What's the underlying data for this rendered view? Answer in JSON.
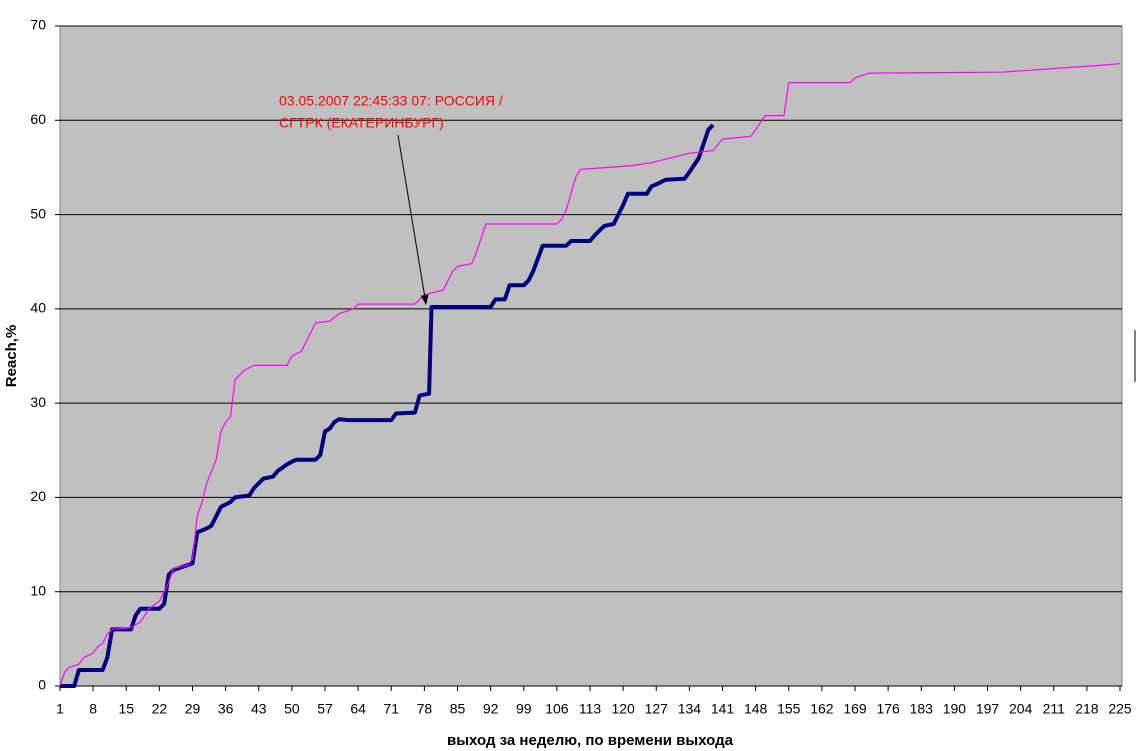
{
  "chart_data": {
    "type": "line",
    "xlabel": "выход за неделю, по времени выхода",
    "ylabel": "Reach,%",
    "annotation": [
      "03.05.2007 22:45:33 07: РОССИЯ /",
      "СГТРК (ЕКАТЕРИНБУРГ)"
    ],
    "xlim": [
      1,
      225
    ],
    "xticks": [
      1,
      8,
      15,
      22,
      29,
      36,
      43,
      50,
      57,
      64,
      71,
      78,
      85,
      92,
      99,
      106,
      113,
      120,
      127,
      134,
      141,
      148,
      155,
      162,
      169,
      176,
      183,
      190,
      197,
      204,
      211,
      218,
      225
    ],
    "ylim": [
      0,
      70
    ],
    "yticks": [
      0,
      10,
      20,
      30,
      40,
      50,
      60,
      70
    ],
    "grid": true,
    "series": [
      {
        "color": "#000080",
        "x": [
          1,
          4,
          5,
          10,
          11,
          12,
          16,
          17,
          18,
          22,
          23,
          24,
          25,
          29,
          30,
          32,
          33,
          35,
          37,
          38,
          41,
          42,
          44,
          46,
          47,
          49,
          50,
          51,
          55,
          56,
          57,
          58,
          59,
          60,
          62,
          71,
          72,
          76,
          77,
          79,
          79.5,
          92,
          93,
          95,
          96,
          99,
          100,
          101,
          103,
          108,
          109,
          113,
          114,
          116,
          118,
          120,
          121,
          125,
          126,
          127,
          129,
          133,
          134,
          136,
          138,
          139
        ],
        "values": [
          0,
          0,
          1.7,
          1.7,
          3,
          6,
          6,
          7.5,
          8.2,
          8.2,
          8.7,
          11.8,
          12.3,
          13,
          16.3,
          16.7,
          17,
          19,
          19.5,
          20,
          20.2,
          21,
          22,
          22.2,
          22.8,
          23.5,
          23.8,
          24,
          24,
          24.5,
          27,
          27.3,
          28,
          28.3,
          28.2,
          28.2,
          28.9,
          29,
          30.8,
          31,
          40.2,
          40.2,
          41,
          41,
          42.5,
          42.5,
          43,
          44,
          46.7,
          46.7,
          47.2,
          47.2,
          47.8,
          48.8,
          49,
          51,
          52.2,
          52.2,
          53,
          53.2,
          53.7,
          53.8,
          54.5,
          56,
          59,
          59.5
        ]
      },
      {
        "color": "#ff00ff",
        "x": [
          1,
          2,
          3,
          5,
          6,
          8,
          9,
          10,
          11,
          12,
          16,
          18,
          20,
          22,
          23,
          24,
          25,
          28,
          29,
          30,
          31,
          32,
          34,
          35,
          36,
          37,
          38,
          39,
          40,
          42,
          49,
          50,
          52,
          53,
          55,
          58,
          60,
          63,
          64,
          76,
          78,
          82,
          84,
          85,
          88,
          89,
          91,
          106,
          107,
          108,
          110,
          111,
          117,
          122,
          126,
          134,
          139,
          141,
          147,
          148,
          150,
          154,
          155,
          168,
          169,
          172,
          200,
          220,
          225
        ],
        "values": [
          0,
          1.5,
          2,
          2.3,
          3,
          3.5,
          4.2,
          4.5,
          5.5,
          6,
          6.2,
          6.8,
          8.3,
          9,
          10,
          11,
          12.5,
          12.8,
          13.5,
          18,
          19.5,
          21.5,
          24,
          27,
          28,
          28.5,
          32.5,
          33,
          33.5,
          34,
          34,
          35,
          35.5,
          36.5,
          38.5,
          38.7,
          39.5,
          40,
          40.5,
          40.5,
          41.5,
          42,
          44,
          44.5,
          44.8,
          46,
          49,
          49,
          49.5,
          50.5,
          54,
          54.8,
          55,
          55.2,
          55.5,
          56.5,
          56.8,
          58,
          58.3,
          59,
          60.5,
          60.5,
          64,
          64,
          64.5,
          65,
          65.1,
          65.8,
          66
        ]
      }
    ]
  }
}
